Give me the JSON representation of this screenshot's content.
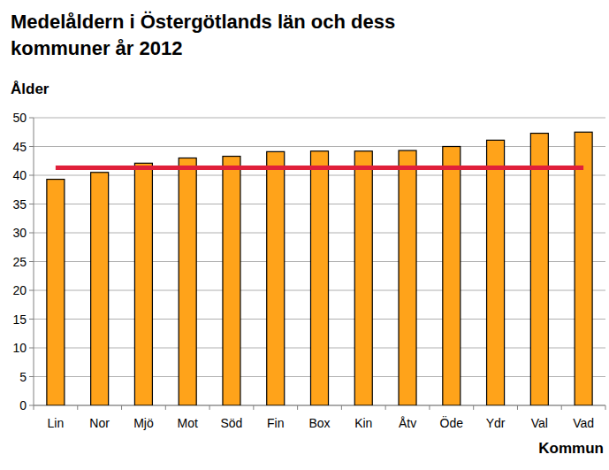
{
  "chart_data": {
    "type": "bar",
    "title": "Medelåldern i Östergötlands län och dess kommuner år 2012",
    "y_label": "Ålder",
    "x_label": "Kommun",
    "categories": [
      "Lin",
      "Nor",
      "Mjö",
      "Mot",
      "Söd",
      "Fin",
      "Box",
      "Kin",
      "Åtv",
      "Öde",
      "Ydr",
      "Val",
      "Vad"
    ],
    "values": [
      39.3,
      40.5,
      42.1,
      43.0,
      43.3,
      44.1,
      44.2,
      44.2,
      44.3,
      45.0,
      46.1,
      47.3,
      47.5
    ],
    "average": 41.3,
    "color": "#ffa31a",
    "ylim": [
      0,
      50
    ],
    "yticks": [
      0,
      5,
      10,
      15,
      20,
      25,
      30,
      35,
      40,
      45,
      50
    ],
    "grid": true
  }
}
